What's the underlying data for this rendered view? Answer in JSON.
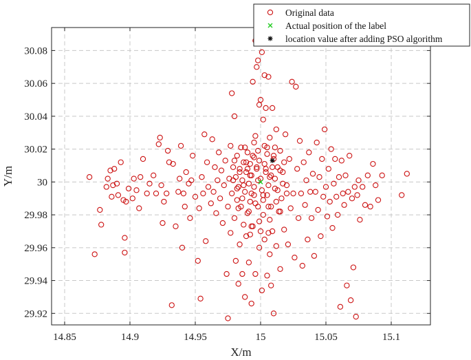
{
  "chart_data": {
    "type": "scatter",
    "xlabel": "X/m",
    "ylabel": "Y/m",
    "xlim": [
      14.84,
      15.13
    ],
    "ylim": [
      29.913,
      30.094
    ],
    "xticks": [
      14.85,
      14.9,
      14.95,
      15,
      15.05,
      15.1
    ],
    "xtick_labels": [
      "14.85",
      "14.9",
      "14.95",
      "15",
      "15.05",
      "15.1"
    ],
    "yticks": [
      29.92,
      29.94,
      29.96,
      29.98,
      30,
      30.02,
      30.04,
      30.06,
      30.08
    ],
    "ytick_labels": [
      "29.92",
      "29.94",
      "29.96",
      "29.98",
      "30",
      "30.02",
      "30.04",
      "30.06",
      "30.08"
    ],
    "grid": true,
    "legend_position": "top-right",
    "series": [
      {
        "name": "Original data",
        "marker": "circle-open",
        "color": "#cc1111",
        "points": [
          [
            14.869,
            30.003
          ],
          [
            14.873,
            29.956
          ],
          [
            14.877,
            29.983
          ],
          [
            14.878,
            29.974
          ],
          [
            14.882,
            29.997
          ],
          [
            14.883,
            30.002
          ],
          [
            14.885,
            30.007
          ],
          [
            14.886,
            29.991
          ],
          [
            14.887,
            29.998
          ],
          [
            14.888,
            30.008
          ],
          [
            14.89,
            29.999
          ],
          [
            14.891,
            29.992
          ],
          [
            14.893,
            30.012
          ],
          [
            14.895,
            29.989
          ],
          [
            14.896,
            29.966
          ],
          [
            14.896,
            29.957
          ],
          [
            14.897,
            29.988
          ],
          [
            14.899,
            29.996
          ],
          [
            14.902,
            29.99
          ],
          [
            14.903,
            30.002
          ],
          [
            14.905,
            29.995
          ],
          [
            14.907,
            29.984
          ],
          [
            14.908,
            30.003
          ],
          [
            14.91,
            30.014
          ],
          [
            14.913,
            29.993
          ],
          [
            14.915,
            29.999
          ],
          [
            14.918,
            30.004
          ],
          [
            14.92,
            29.993
          ],
          [
            14.922,
            30.023
          ],
          [
            14.923,
            30.027
          ],
          [
            14.924,
            29.998
          ],
          [
            14.925,
            29.975
          ],
          [
            14.926,
            29.988
          ],
          [
            14.928,
            29.993
          ],
          [
            14.929,
            30.019
          ],
          [
            14.93,
            30.012
          ],
          [
            14.932,
            29.925
          ],
          [
            14.933,
            30.011
          ],
          [
            14.935,
            29.973
          ],
          [
            14.937,
            29.994
          ],
          [
            14.938,
            30.002
          ],
          [
            14.939,
            30.022
          ],
          [
            14.94,
            29.96
          ],
          [
            14.941,
            29.993
          ],
          [
            14.942,
            29.985
          ],
          [
            14.943,
            30.006
          ],
          [
            14.945,
            29.999
          ],
          [
            14.946,
            29.978
          ],
          [
            14.947,
            30.001
          ],
          [
            14.948,
            30.016
          ],
          [
            14.95,
            29.991
          ],
          [
            14.952,
            29.952
          ],
          [
            14.953,
            29.984
          ],
          [
            14.954,
            29.929
          ],
          [
            14.955,
            30.003
          ],
          [
            14.956,
            29.993
          ],
          [
            14.957,
            30.029
          ],
          [
            14.958,
            29.964
          ],
          [
            14.959,
            30.012
          ],
          [
            14.96,
            29.997
          ],
          [
            14.962,
            29.987
          ],
          [
            14.963,
            30.026
          ],
          [
            14.964,
            29.994
          ],
          [
            14.965,
            30.009
          ],
          [
            14.966,
            29.981
          ],
          [
            14.967,
            30.001
          ],
          [
            14.968,
            30.018
          ],
          [
            14.969,
            29.99
          ],
          [
            14.97,
            30.007
          ],
          [
            14.971,
            29.975
          ],
          [
            14.972,
            29.998
          ],
          [
            14.973,
            30.013
          ],
          [
            14.974,
            29.944
          ],
          [
            14.975,
            29.917
          ],
          [
            14.975,
            29.985
          ],
          [
            14.976,
            30.002
          ],
          [
            14.977,
            30.022
          ],
          [
            14.977,
            29.969
          ],
          [
            14.978,
            30.054
          ],
          [
            14.978,
            29.993
          ],
          [
            14.979,
            30.009
          ],
          [
            14.98,
            30.04
          ],
          [
            14.98,
            29.978
          ],
          [
            14.981,
            30.003
          ],
          [
            14.981,
            29.952
          ],
          [
            14.982,
            30.016
          ],
          [
            14.982,
            29.989
          ],
          [
            14.983,
            29.997
          ],
          [
            14.983,
            29.938
          ],
          [
            14.984,
            30.008
          ],
          [
            14.984,
            29.962
          ],
          [
            14.985,
            30.021
          ],
          [
            14.985,
            29.985
          ],
          [
            14.986,
            30.001
          ],
          [
            14.986,
            29.944
          ],
          [
            14.987,
            30.012
          ],
          [
            14.987,
            29.974
          ],
          [
            14.988,
            29.994
          ],
          [
            14.988,
            29.93
          ],
          [
            14.989,
            30.006
          ],
          [
            14.989,
            29.967
          ],
          [
            14.99,
            30.018
          ],
          [
            14.99,
            29.981
          ],
          [
            14.991,
            29.999
          ],
          [
            14.991,
            29.951
          ],
          [
            14.992,
            30.011
          ],
          [
            14.992,
            29.988
          ],
          [
            14.993,
            29.926
          ],
          [
            14.993,
            30.004
          ],
          [
            14.994,
            30.061
          ],
          [
            14.994,
            29.973
          ],
          [
            14.995,
            30.015
          ],
          [
            14.995,
            29.992
          ],
          [
            14.996,
            30.086
          ],
          [
            14.996,
            29.944
          ],
          [
            14.997,
            30.07
          ],
          [
            14.997,
            30.008
          ],
          [
            14.998,
            30.074
          ],
          [
            14.998,
            29.985
          ],
          [
            14.999,
            30.047
          ],
          [
            14.999,
            29.96
          ],
          [
            15,
            30.05
          ],
          [
            15,
            30.002
          ],
          [
            15.001,
            30.079
          ],
          [
            15.001,
            29.934
          ],
          [
            15.002,
            30.038
          ],
          [
            15.002,
            29.992
          ],
          [
            15.003,
            30.065
          ],
          [
            15.003,
            29.965
          ],
          [
            15.004,
            30.045
          ],
          [
            15.004,
            30.008
          ],
          [
            15.005,
            30.021
          ],
          [
            15.005,
            29.943
          ],
          [
            15.006,
            30.064
          ],
          [
            15.006,
            29.985
          ],
          [
            15.007,
            30.027
          ],
          [
            15.007,
            29.956
          ],
          [
            15.008,
            30.004
          ],
          [
            15.008,
            29.937
          ],
          [
            15.009,
            30.045
          ],
          [
            15.009,
            29.97
          ],
          [
            15.01,
            30.016
          ],
          [
            15.01,
            29.92
          ],
          [
            15.011,
            29.996
          ],
          [
            15.012,
            30.032
          ],
          [
            15.012,
            29.961
          ],
          [
            15.013,
            30.009
          ],
          [
            15.014,
            29.982
          ],
          [
            15.015,
            30.019
          ],
          [
            15.015,
            29.947
          ],
          [
            15.016,
            29.99
          ],
          [
            15.017,
            30.006
          ],
          [
            15.018,
            29.971
          ],
          [
            15.019,
            30.029
          ],
          [
            15.02,
            29.998
          ],
          [
            15.021,
            29.962
          ],
          [
            15.022,
            30.014
          ],
          [
            15.023,
            29.984
          ],
          [
            15.024,
            30.061
          ],
          [
            15.025,
            29.993
          ],
          [
            15.026,
            29.954
          ],
          [
            15.027,
            30.058
          ],
          [
            15.028,
            30.008
          ],
          [
            15.029,
            29.978
          ],
          [
            15.03,
            30.025
          ],
          [
            15.031,
            29.993
          ],
          [
            15.032,
            29.949
          ],
          [
            15.033,
            30.012
          ],
          [
            15.034,
            29.986
          ],
          [
            15.035,
            30.001
          ],
          [
            15.036,
            29.965
          ],
          [
            15.037,
            30.018
          ],
          [
            15.038,
            29.994
          ],
          [
            15.039,
            29.978
          ],
          [
            15.04,
            30.005
          ],
          [
            15.041,
            29.955
          ],
          [
            15.042,
            29.994
          ],
          [
            15.043,
            30.024
          ],
          [
            15.044,
            29.983
          ],
          [
            15.045,
            30.003
          ],
          [
            15.046,
            29.967
          ],
          [
            15.047,
            30.014
          ],
          [
            15.048,
            29.991
          ],
          [
            15.049,
            30.032
          ],
          [
            15.05,
            29.997
          ],
          [
            15.051,
            29.979
          ],
          [
            15.052,
            30.008
          ],
          [
            15.053,
            29.988
          ],
          [
            15.054,
            30.02
          ],
          [
            15.055,
            29.972
          ],
          [
            15.056,
            29.999
          ],
          [
            15.057,
            30.014
          ],
          [
            15.058,
            29.991
          ],
          [
            15.059,
            29.98
          ],
          [
            15.06,
            30.003
          ],
          [
            15.061,
            29.924
          ],
          [
            15.062,
            30.013
          ],
          [
            15.063,
            29.993
          ],
          [
            15.064,
            29.986
          ],
          [
            15.065,
            30.004
          ],
          [
            15.066,
            29.937
          ],
          [
            15.067,
            29.994
          ],
          [
            15.068,
            30.016
          ],
          [
            15.069,
            29.928
          ],
          [
            15.07,
            29.99
          ],
          [
            15.071,
            29.948
          ],
          [
            15.072,
            29.997
          ],
          [
            15.073,
            29.918
          ],
          [
            15.074,
            29.992
          ],
          [
            15.075,
            30.001
          ],
          [
            15.076,
            29.977
          ],
          [
            15.078,
            29.997
          ],
          [
            15.08,
            29.986
          ],
          [
            15.082,
            30.004
          ],
          [
            15.084,
            29.985
          ],
          [
            15.086,
            30.011
          ],
          [
            15.088,
            29.998
          ],
          [
            15.09,
            29.989
          ],
          [
            15.093,
            30.004
          ],
          [
            15.108,
            29.992
          ],
          [
            15.112,
            30.005
          ],
          [
            14.992,
            30.004
          ],
          [
            14.995,
            29.997
          ],
          [
            14.998,
            30.001
          ],
          [
            15.001,
            29.995
          ],
          [
            15.004,
            30.006
          ],
          [
            15.006,
            29.998
          ],
          [
            15.003,
            30.011
          ],
          [
            14.997,
            30.009
          ],
          [
            14.993,
            29.993
          ],
          [
            15.002,
            29.989
          ],
          [
            15.007,
            30.003
          ],
          [
            14.999,
            30.013
          ],
          [
            14.996,
            29.987
          ],
          [
            15.005,
            29.992
          ],
          [
            14.99,
            30.008
          ],
          [
            15.009,
            30.009
          ],
          [
            14.994,
            30.016
          ],
          [
            15.008,
            29.985
          ],
          [
            14.991,
            29.982
          ],
          [
            15.011,
            30.002
          ],
          [
            14.998,
            30.019
          ],
          [
            15.002,
            29.98
          ],
          [
            14.987,
            29.998
          ],
          [
            15.013,
            29.995
          ],
          [
            14.995,
            30.024
          ],
          [
            15.005,
            30.017
          ],
          [
            14.989,
            30.012
          ],
          [
            15.01,
            30.014
          ],
          [
            14.986,
            29.99
          ],
          [
            15.012,
            29.988
          ],
          [
            14.999,
            29.976
          ],
          [
            15.003,
            30.022
          ],
          [
            14.984,
            30.006
          ],
          [
            15.015,
            30.007
          ],
          [
            14.993,
            29.973
          ],
          [
            15.007,
            29.977
          ],
          [
            14.982,
            29.996
          ],
          [
            15.017,
            29.999
          ],
          [
            14.996,
            30.028
          ],
          [
            15,
            29.97
          ],
          [
            14.98,
            30.013
          ],
          [
            15.018,
            30.012
          ],
          [
            14.988,
            30.021
          ],
          [
            15.011,
            30.021
          ],
          [
            14.983,
            29.984
          ],
          [
            15.015,
            29.982
          ],
          [
            14.992,
            29.968
          ],
          [
            15.006,
            29.969
          ],
          [
            14.979,
            30.001
          ],
          [
            15.02,
            29.993
          ]
        ]
      },
      {
        "name": "Actual position of the label",
        "marker": "x",
        "color": "#22cc22",
        "points": [
          [
            15.0,
            30.0
          ]
        ]
      },
      {
        "name": "location value after adding PSO algorithm",
        "marker": "asterisk",
        "color": "#111111",
        "points": [
          [
            15.009,
            30.013
          ]
        ]
      }
    ]
  }
}
